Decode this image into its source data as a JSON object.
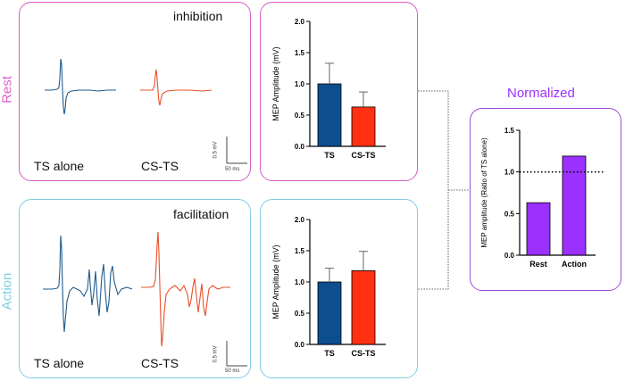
{
  "rows": {
    "rest": {
      "label": "Rest",
      "color": "#e05fc7"
    },
    "action": {
      "label": "Action",
      "color": "#7fcde3"
    }
  },
  "traces": {
    "rest": {
      "title": "inhibition",
      "left_caption": "TS alone",
      "right_caption": "CS-TS",
      "scale_v": "0.5 mV",
      "scale_t": "50 ms",
      "ts_color": "#1f5a8c",
      "cs_color": "#e8502a"
    },
    "action": {
      "title": "facilitation",
      "left_caption": "TS alone",
      "right_caption": "CS-TS",
      "scale_v": "0.5 mV",
      "scale_t": "50 ms",
      "ts_color": "#1f5a8c",
      "cs_color": "#e8502a"
    }
  },
  "normalized_title": "Normalized",
  "chart_data": [
    {
      "id": "rest-bar",
      "type": "bar",
      "ylabel": "MEP Amplitude (mV)",
      "ylim": [
        0,
        2.0
      ],
      "yticks": [
        "0.0",
        "0.5",
        "1.0",
        "1.5",
        "2.0"
      ],
      "categories": [
        "TS",
        "CS-TS"
      ],
      "values": [
        1.0,
        0.63
      ],
      "errors": [
        0.33,
        0.24
      ],
      "colors": [
        "#0d4e8f",
        "#ff3111"
      ]
    },
    {
      "id": "action-bar",
      "type": "bar",
      "ylabel": "MEP Amplitude (mV)",
      "ylim": [
        0,
        2.0
      ],
      "yticks": [
        "0.0",
        "0.5",
        "1.0",
        "1.5",
        "2.0"
      ],
      "categories": [
        "TS",
        "CS-TS"
      ],
      "values": [
        1.0,
        1.18
      ],
      "errors": [
        0.22,
        0.31
      ],
      "colors": [
        "#0d4e8f",
        "#ff3111"
      ]
    },
    {
      "id": "norm-bar",
      "type": "bar",
      "ylabel": "MEP amplitude (Ratio of TS alone)",
      "ylim": [
        0,
        1.5
      ],
      "yticks": [
        "0.0",
        "0.5",
        "1.0",
        "1.5"
      ],
      "categories": [
        "Rest",
        "Action"
      ],
      "values": [
        0.63,
        1.19
      ],
      "reference_line": 1.0,
      "colors": [
        "#9b30ff",
        "#9b30ff"
      ]
    }
  ]
}
